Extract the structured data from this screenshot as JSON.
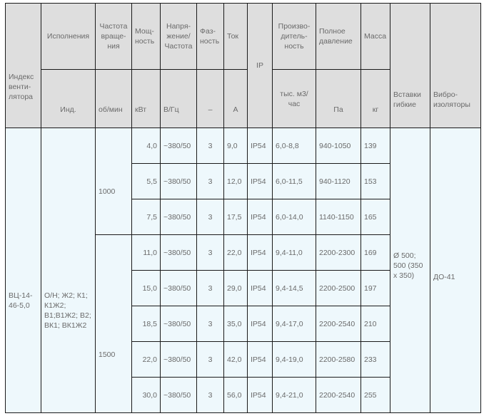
{
  "header": {
    "row1": {
      "index": "Индекс венти-лятора",
      "versions": "Исполнения",
      "speed": "Частота враще-ния",
      "power": "Мощ-ность",
      "voltage": "Напря-жение/ Частота",
      "phase": "Фаз-ность",
      "current": "Ток",
      "ip": "IP",
      "capacity": "Произво-дитель-ность",
      "pressure": "Полное давление",
      "mass": "Масса",
      "inserts": "Вставки гибкие",
      "vibro": "Вибро-изоляторы"
    },
    "row2": {
      "versions": "Инд.",
      "speed": "об/мин",
      "power": "кВт",
      "voltage": "В/Гц",
      "phase": "–",
      "current": "А",
      "capacity": "тыс. м3/час",
      "pressure": "Па",
      "mass": "кг"
    }
  },
  "body": {
    "index": "ВЦ-14-46-5,0",
    "versions": "О/Н; Ж2; К1; К1Ж2; В1;В1Ж2; В2; ВК1; ВК1Ж2",
    "speed_1000": "1000",
    "speed_1500": "1500",
    "inserts": "Ø 500; 500 (350 x 350)",
    "vibro": "ДО-41",
    "rows": [
      {
        "power": "4,0",
        "voltage": "~380/50",
        "phase": "3",
        "current": "9,0",
        "ip": "IP54",
        "capacity": "6,0-8,8",
        "pressure": "940-1050",
        "mass": "139"
      },
      {
        "power": "5,5",
        "voltage": "~380/50",
        "phase": "3",
        "current": "12,0",
        "ip": "IP54",
        "capacity": "6,0-11,5",
        "pressure": "940-1120",
        "mass": "153"
      },
      {
        "power": "7,5",
        "voltage": "~380/50",
        "phase": "3",
        "current": "17,5",
        "ip": "IP54",
        "capacity": "6,0-14,0",
        "pressure": "1140-1150",
        "mass": "165"
      },
      {
        "power": "11,0",
        "voltage": "~380/50",
        "phase": "3",
        "current": "22,0",
        "ip": "IP54",
        "capacity": "9,4-11,0",
        "pressure": "2200-2300",
        "mass": "169"
      },
      {
        "power": "15,0",
        "voltage": "~380/50",
        "phase": "3",
        "current": "29,0",
        "ip": "IP54",
        "capacity": "9,4-14,5",
        "pressure": "2200-2500",
        "mass": "197"
      },
      {
        "power": "18,5",
        "voltage": "~380/50",
        "phase": "3",
        "current": "35,0",
        "ip": "IP54",
        "capacity": "9,4-17,0",
        "pressure": "2200-2540",
        "mass": "210"
      },
      {
        "power": "22,0",
        "voltage": "~380/50",
        "phase": "3",
        "current": "42,0",
        "ip": "IP54",
        "capacity": "9,4-19,0",
        "pressure": "2200-2580",
        "mass": "233"
      },
      {
        "power": "30,0",
        "voltage": "~380/50",
        "phase": "3",
        "current": "56,0",
        "ip": "IP54",
        "capacity": "9,4-21,0",
        "pressure": "2200-2540",
        "mass": "255"
      }
    ]
  }
}
